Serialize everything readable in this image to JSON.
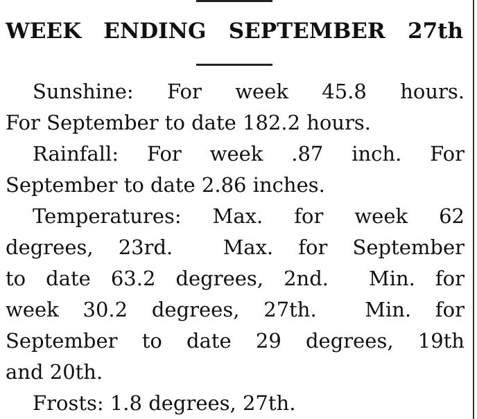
{
  "header": {
    "title": "WEEK ENDING SEPTEMBER 27th"
  },
  "paragraphs": [
    {
      "lines": [
        "Sunshine: For week 45.8 hours.",
        "For September to date 182.2 hours."
      ]
    },
    {
      "lines": [
        "Rainfall: For week .87 inch. For",
        "September to date 2.86 inches."
      ]
    },
    {
      "lines": [
        "Temperatures: Max. for week 62",
        "degrees, 23rd.  Max. for September",
        "to date 63.2 degrees, 2nd.  Min. for",
        "week 30.2 degrees, 27th.  Min. for",
        "September to date 29 degrees, 19th",
        "and 20th."
      ]
    },
    {
      "lines": [
        "Frosts: 1.8 degrees, 27th."
      ]
    }
  ]
}
